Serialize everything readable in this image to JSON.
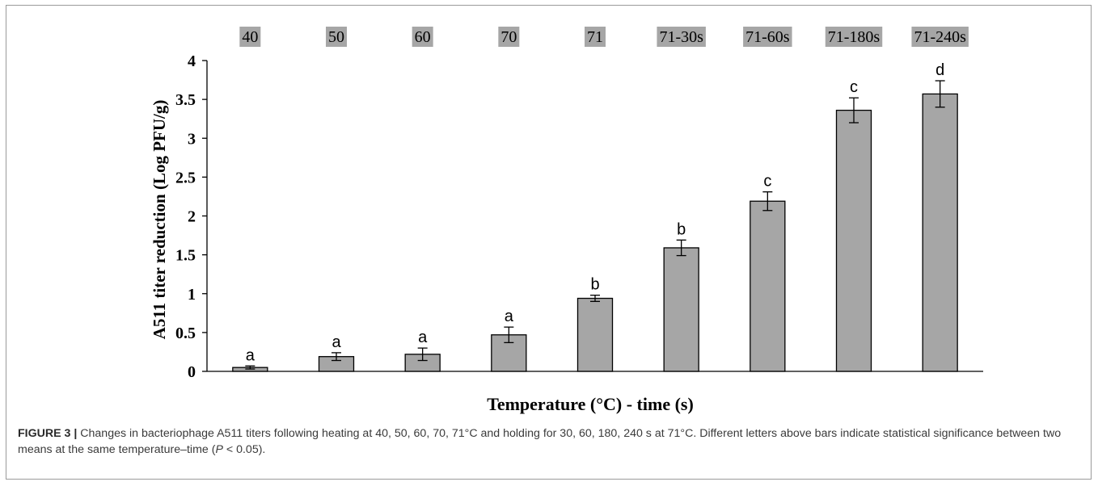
{
  "chart_data": {
    "type": "bar",
    "categories": [
      "40",
      "50",
      "60",
      "70",
      "71",
      "71-30s",
      "71-60s",
      "71-180s",
      "71-240s"
    ],
    "values": [
      0.05,
      0.19,
      0.22,
      0.47,
      0.94,
      1.59,
      2.19,
      3.36,
      3.57
    ],
    "errors": [
      0.02,
      0.05,
      0.08,
      0.1,
      0.04,
      0.1,
      0.12,
      0.16,
      0.17
    ],
    "significance_letters": [
      "a",
      "a",
      "a",
      "a",
      "b",
      "b",
      "c",
      "c",
      "d"
    ],
    "xlabel": "Temperature (°C) - time (s)",
    "ylabel": "A511 titer reduction (Log PFU/g)",
    "ylim": [
      0,
      4
    ],
    "yticks": [
      "0",
      "0.5",
      "1",
      "1.5",
      "2",
      "2.5",
      "3",
      "3.5",
      "4"
    ],
    "category_label_position": "top",
    "grid": false,
    "colors": {
      "bar": "#a6a6a6",
      "label_bg": "#a6a6a6",
      "axis": "#000000"
    }
  },
  "caption": {
    "figure_label": "FIGURE 3 |",
    "text_1": " Changes in bacteriophage A511 titers following heating at 40, 50, 60, 70, 71°C and holding for 30, 60, 180, 240 s at 71°C. Different letters above bars indicate statistical significance between two means at the same temperature–time (",
    "p_symbol": "P",
    "text_2": " < 0.05)."
  }
}
